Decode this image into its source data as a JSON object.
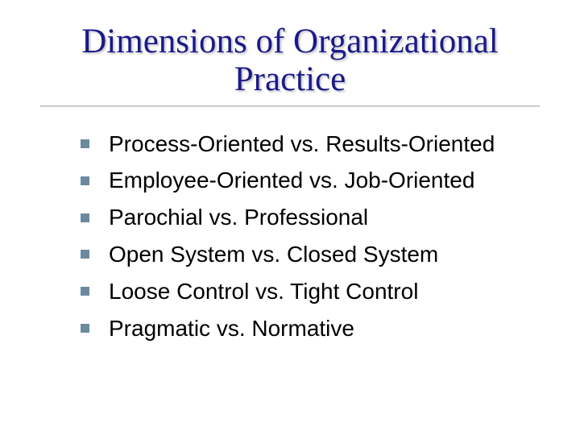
{
  "slide": {
    "title": "Dimensions of Organizational Practice",
    "title_color": "#1a1a8a",
    "title_fontsize": 43,
    "title_font": "Times New Roman",
    "underline_color": "#b0b0b0",
    "background_color": "#ffffff",
    "bullets": [
      {
        "text": "Process-Oriented vs. Results-Oriented"
      },
      {
        "text": "Employee-Oriented vs. Job-Oriented"
      },
      {
        "text": "Parochial vs. Professional"
      },
      {
        "text": "Open System vs. Closed System"
      },
      {
        "text": "Loose Control vs. Tight Control"
      },
      {
        "text": "Pragmatic vs. Normative"
      }
    ],
    "bullet_color": "#6b8a9f",
    "bullet_size": 11,
    "bullet_text_color": "#000000",
    "bullet_fontsize": 28,
    "bullet_font": "Verdana"
  }
}
